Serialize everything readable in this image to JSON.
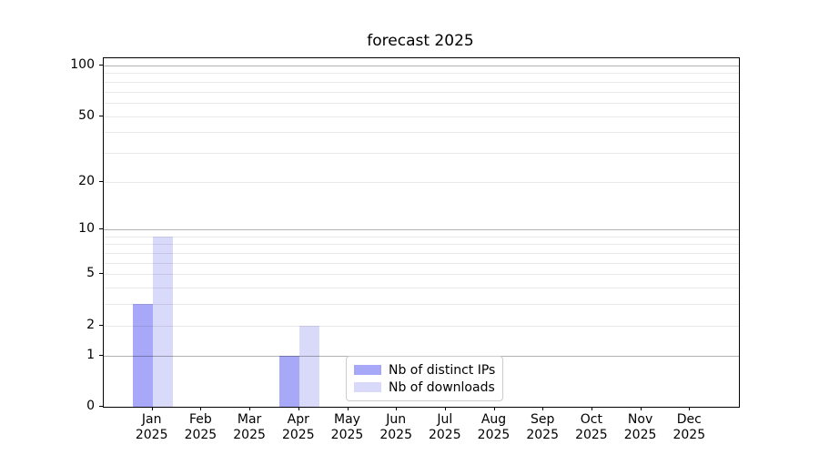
{
  "chart_data": {
    "type": "bar",
    "title": "forecast 2025",
    "categories": [
      "Jan",
      "Feb",
      "Mar",
      "Apr",
      "May",
      "Jun",
      "Jul",
      "Aug",
      "Sep",
      "Oct",
      "Nov",
      "Dec"
    ],
    "year": "2025",
    "series": [
      {
        "name": "Nb of distinct IPs",
        "color": "#a8a8f8",
        "values": [
          3,
          0,
          0,
          1,
          0,
          0,
          0,
          0,
          0,
          0,
          0,
          0
        ]
      },
      {
        "name": "Nb of downloads",
        "color": "#d9d9fa",
        "values": [
          9,
          0,
          0,
          2,
          0,
          0,
          0,
          0,
          0,
          0,
          0,
          0
        ]
      }
    ],
    "yscale": "log1p",
    "ylim": [
      0,
      110
    ],
    "yticks": [
      0,
      1,
      2,
      5,
      10,
      20,
      50,
      100
    ],
    "major_gridlines": [
      1,
      10,
      100
    ],
    "minor_gridlines": [
      2,
      3,
      4,
      5,
      6,
      7,
      8,
      9,
      20,
      30,
      40,
      50,
      60,
      70,
      80,
      90
    ],
    "grid": true,
    "legend_position": "lower center",
    "xlabel": "",
    "ylabel": ""
  }
}
